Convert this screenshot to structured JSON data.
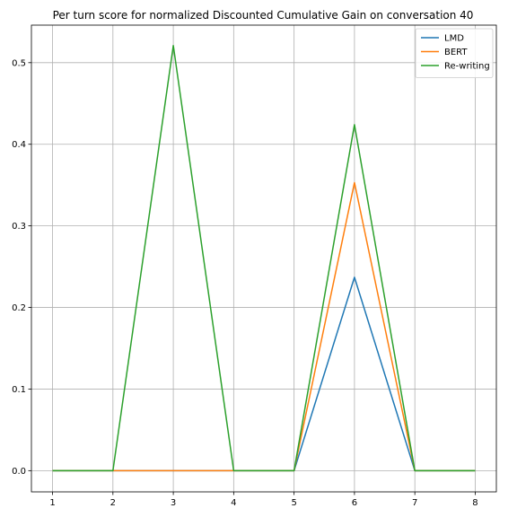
{
  "chart_data": {
    "type": "line",
    "title": "Per turn score for normalized Discounted Cumulative Gain on conversation 40",
    "xlabel": "",
    "ylabel": "",
    "x": [
      1,
      2,
      3,
      4,
      5,
      6,
      7,
      8
    ],
    "x_ticks": [
      "1",
      "2",
      "3",
      "4",
      "5",
      "6",
      "7",
      "8"
    ],
    "xlim": [
      0.65,
      8.35
    ],
    "ylim": [
      -0.026,
      0.546
    ],
    "y_ticks": [
      "0.0",
      "0.1",
      "0.2",
      "0.3",
      "0.4",
      "0.5"
    ],
    "grid": true,
    "legend_position": "top-right",
    "series": [
      {
        "name": "LMD",
        "color": "#1f77b4",
        "values": [
          0,
          0,
          0,
          0,
          0,
          0.237,
          0,
          0
        ]
      },
      {
        "name": "BERT",
        "color": "#ff7f0e",
        "values": [
          0,
          0,
          0,
          0,
          0,
          0.353,
          0,
          0
        ]
      },
      {
        "name": "Re-writing",
        "color": "#2ca02c",
        "values": [
          0,
          0,
          0.521,
          0,
          0,
          0.424,
          0,
          0
        ]
      }
    ]
  }
}
